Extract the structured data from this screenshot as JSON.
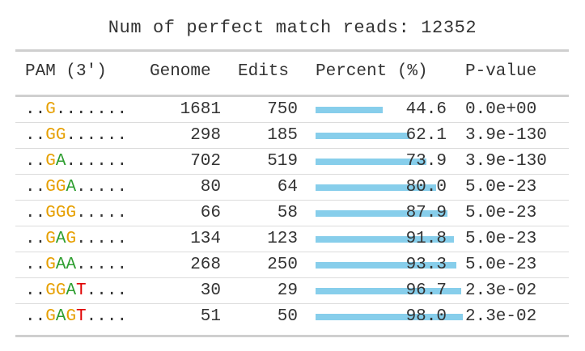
{
  "title": "Num of perfect match reads: 12352",
  "header": {
    "pam": "PAM (3')",
    "genome": "Genome",
    "edits": "Edits",
    "percent": "Percent (%)",
    "pvalue": "P-value"
  },
  "colors": {
    "G": "#e69f00",
    "A": "#2e9e30",
    "T": "#e00000",
    "dot": "#333333",
    "bar": "#87ceeb"
  },
  "rows": [
    {
      "pam": "..G.......",
      "genome": "1681",
      "edits": "750",
      "percent": "44.6",
      "percent_value": 44.6,
      "pvalue": "0.0e+00"
    },
    {
      "pam": "..GG......",
      "genome": "298",
      "edits": "185",
      "percent": "62.1",
      "percent_value": 62.1,
      "pvalue": "3.9e-130"
    },
    {
      "pam": "..GA......",
      "genome": "702",
      "edits": "519",
      "percent": "73.9",
      "percent_value": 73.9,
      "pvalue": "3.9e-130"
    },
    {
      "pam": "..GGA.....",
      "genome": "80",
      "edits": "64",
      "percent": "80.0",
      "percent_value": 80.0,
      "pvalue": "5.0e-23"
    },
    {
      "pam": "..GGG.....",
      "genome": "66",
      "edits": "58",
      "percent": "87.9",
      "percent_value": 87.9,
      "pvalue": "5.0e-23"
    },
    {
      "pam": "..GAG.....",
      "genome": "134",
      "edits": "123",
      "percent": "91.8",
      "percent_value": 91.8,
      "pvalue": "5.0e-23"
    },
    {
      "pam": "..GAA.....",
      "genome": "268",
      "edits": "250",
      "percent": "93.3",
      "percent_value": 93.3,
      "pvalue": "5.0e-23"
    },
    {
      "pam": "..GGAT....",
      "genome": "30",
      "edits": "29",
      "percent": "96.7",
      "percent_value": 96.7,
      "pvalue": "2.3e-02"
    },
    {
      "pam": "..GAGT....",
      "genome": "51",
      "edits": "50",
      "percent": "98.0",
      "percent_value": 98.0,
      "pvalue": "2.3e-02"
    }
  ]
}
